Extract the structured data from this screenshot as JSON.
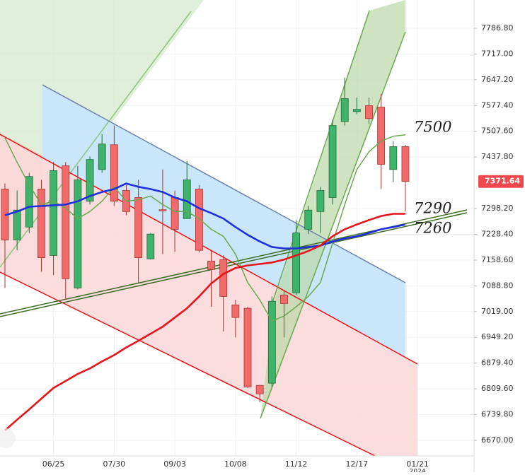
{
  "chart_data": {
    "type": "candlestick",
    "categories": [
      null,
      null,
      null,
      null,
      "06/25",
      null,
      null,
      null,
      null,
      "07/30",
      null,
      null,
      null,
      null,
      "09/03",
      null,
      null,
      null,
      null,
      "10/08",
      null,
      null,
      null,
      null,
      "11/12",
      null,
      null,
      null,
      null,
      "12/17",
      null,
      null,
      null,
      null,
      "01/21"
    ],
    "year_label": "2024",
    "open": [
      7351,
      7213,
      7248,
      7351,
      7171,
      7414,
      7083,
      7318,
      7404,
      7471,
      7347,
      7328,
      7162,
      7295,
      7328,
      7271,
      7351,
      7156,
      7160,
      7037,
      7028,
      6819,
      6825,
      7064,
      7070,
      7242,
      7290,
      7328,
      7534,
      7561,
      7577,
      7573,
      7404,
      7466,
      null
    ],
    "high": [
      7366,
      7347,
      7395,
      7376,
      7424,
      7424,
      7414,
      7439,
      7500,
      7523,
      7362,
      7376,
      7232,
      7404,
      7347,
      7427,
      7362,
      7185,
      7171,
      7051,
      7032,
      6821,
      7060,
      7076,
      7267,
      7305,
      7357,
      7538,
      7653,
      7599,
      7599,
      7609,
      7481,
      7471,
      null
    ],
    "low": [
      7083,
      7185,
      7232,
      7127,
      7118,
      7051,
      7079,
      7309,
      7395,
      7305,
      7280,
      7098,
      7160,
      7175,
      7181,
      7271,
      7179,
      7032,
      6965,
      6949,
      6812,
      6773,
      6815,
      6949,
      7064,
      7229,
      7232,
      7309,
      7523,
      7554,
      7527,
      7351,
      7370,
      7290,
      null
    ],
    "close": [
      7213,
      7294,
      7385,
      7165,
      7401,
      7108,
      7376,
      7431,
      7473,
      7318,
      7290,
      7165,
      7229,
      7292,
      7242,
      7376,
      7185,
      7133,
      7060,
      7003,
      6815,
      6796,
      7047,
      7041,
      7232,
      7294,
      7347,
      7523,
      7596,
      7567,
      7542,
      7418,
      7466,
      7371.64,
      null
    ],
    "up_color": "#3fb36b",
    "down_color": "#f26b6b",
    "overlays": [
      {
        "color": "#6aa84f",
        "values": [
          7490,
          7424,
          7362,
          7309,
          7318,
          7299,
          7271,
          7290,
          7318,
          7357,
          7318,
          7322,
          7332,
          7309,
          7290,
          7290,
          7271,
          7242,
          7223,
          7175,
          7098,
          7051,
          6993,
          7007,
          7032,
          7060,
          7098,
          7204,
          7309,
          7404,
          7452,
          7481,
          7494,
          7498,
          null
        ]
      },
      {
        "color": "#1f2fe0",
        "values": [
          7280,
          7290,
          7303,
          7305,
          7307,
          7309,
          7318,
          7332,
          7343,
          7351,
          7366,
          7357,
          7351,
          7343,
          7328,
          7318,
          7299,
          7286,
          7271,
          7248,
          7227,
          7209,
          7194,
          7190,
          7190,
          7194,
          7198,
          7209,
          7217,
          7223,
          7232,
          7242,
          7248,
          7255,
          null
        ]
      },
      {
        "color": "#e8141b",
        "values": [
          6697,
          6726,
          6754,
          6783,
          6812,
          6831,
          6850,
          6865,
          6884,
          6901,
          6922,
          6940,
          6959,
          6978,
          7003,
          7028,
          7060,
          7095,
          7121,
          7137,
          7144,
          7148,
          7152,
          7160,
          7171,
          7183,
          7198,
          7223,
          7242,
          7255,
          7267,
          7278,
          7284,
          7284,
          null
        ]
      }
    ],
    "annotations": [
      "7500",
      "7290",
      "7260"
    ],
    "ylim": [
      6627.9,
      7863.3
    ],
    "yticks": [
      {
        "value": 6670,
        "label": "6670.00"
      },
      {
        "value": 6739.8,
        "label": "6739.80"
      },
      {
        "value": 6809.6,
        "label": "6809.60"
      },
      {
        "value": 6879.4,
        "label": "6879.40"
      },
      {
        "value": 6949.2,
        "label": "6949.20"
      },
      {
        "value": 7019,
        "label": "7019.00"
      },
      {
        "value": 7088.8,
        "label": "7088.80"
      },
      {
        "value": 7158.6,
        "label": "7158.60"
      },
      {
        "value": 7228.4,
        "label": "7228.40"
      },
      {
        "value": 7298.2,
        "label": "7298.20"
      },
      {
        "value": 7437.8,
        "label": "7437.80"
      },
      {
        "value": 7507.6,
        "label": "7507.60"
      },
      {
        "value": 7577.4,
        "label": "7577.40"
      },
      {
        "value": 7647.2,
        "label": "7647.20"
      },
      {
        "value": 7717,
        "label": "7717.00"
      },
      {
        "value": 7786.8,
        "label": "7786.80"
      }
    ],
    "grid": true
  }
}
